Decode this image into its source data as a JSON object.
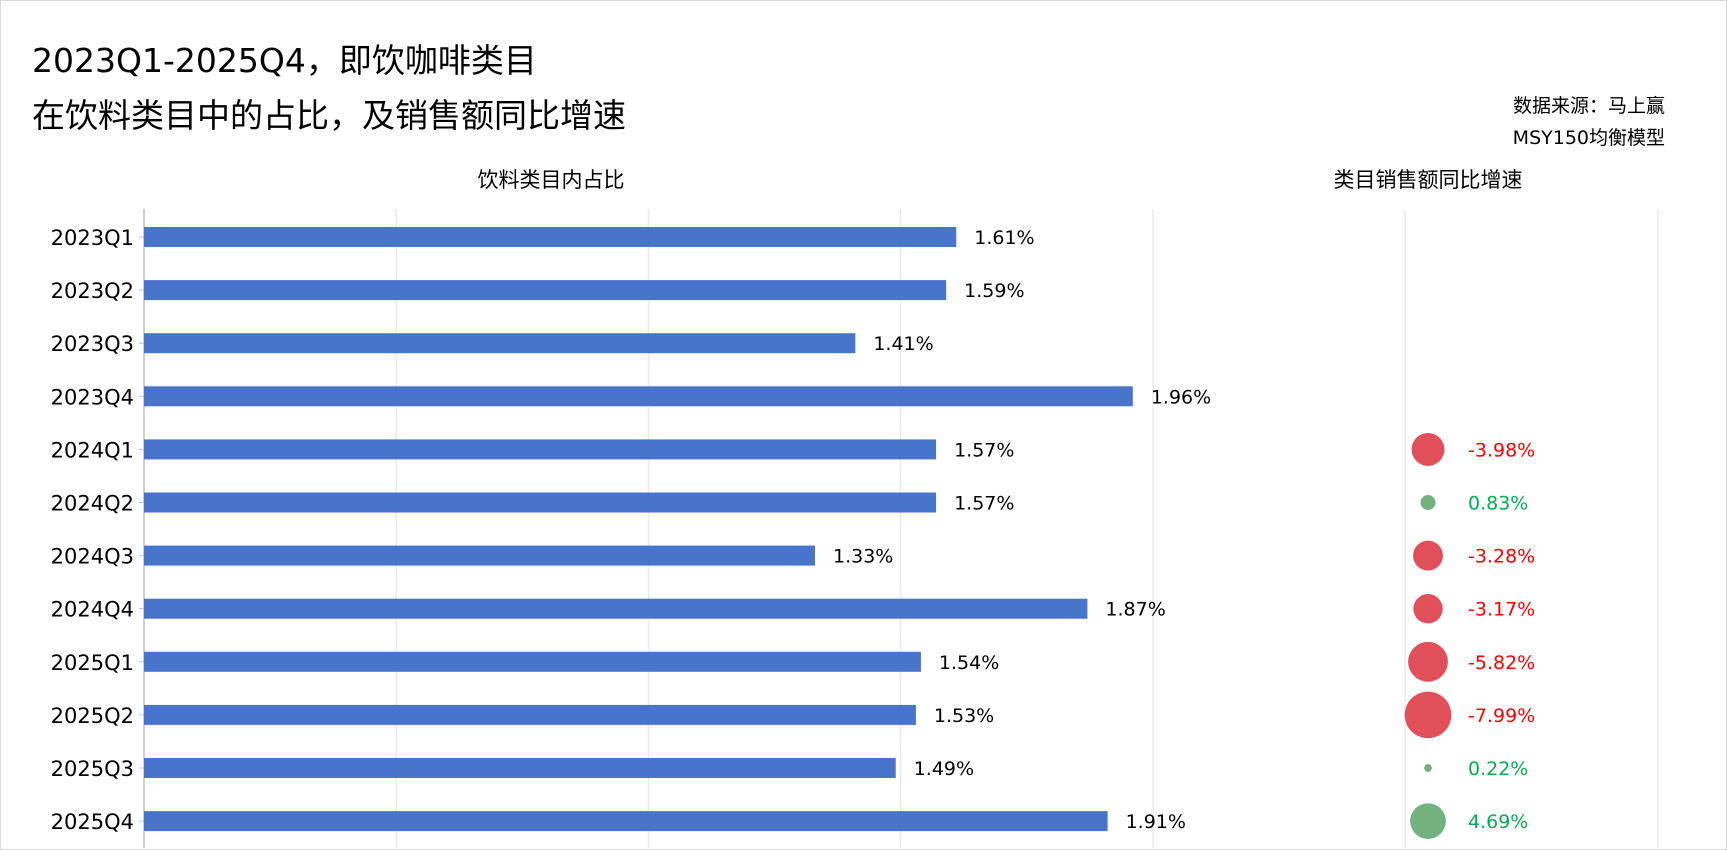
{
  "title_line1": "2023Q1-2025Q4，即饮咖啡类目",
  "title_line2": "在饮料类目中的占比，及销售额同比增速",
  "source_line1": "数据来源：马上赢",
  "source_line2": "MSY150均衡模型",
  "colors": {
    "bar": "#4874CB",
    "negative_bubble": "#E04F5A",
    "positive_bubble": "#72B27E",
    "negative_text": "#FF0000",
    "positive_text": "#00B050",
    "grid": "#EBEBEB"
  },
  "chart_data": [
    {
      "type": "bar",
      "orientation": "horizontal",
      "title": "饮料类目内占比",
      "categories": [
        "2023Q1",
        "2023Q2",
        "2023Q3",
        "2023Q4",
        "2024Q1",
        "2024Q2",
        "2024Q3",
        "2024Q4",
        "2025Q1",
        "2025Q2",
        "2025Q3",
        "2025Q4"
      ],
      "values": [
        1.61,
        1.59,
        1.41,
        1.96,
        1.57,
        1.57,
        1.33,
        1.87,
        1.54,
        1.53,
        1.49,
        1.91
      ],
      "labels": [
        "1.61%",
        "1.59%",
        "1.41%",
        "1.96%",
        "1.57%",
        "1.57%",
        "1.33%",
        "1.87%",
        "1.54%",
        "1.53%",
        "1.49%",
        "1.91%"
      ],
      "xlim": [
        0,
        2.0
      ],
      "grid_step": 0.5,
      "grid": true
    },
    {
      "type": "scatter",
      "subtype": "bubble",
      "title": "类目销售额同比增速",
      "categories": [
        "2024Q1",
        "2024Q2",
        "2024Q3",
        "2024Q4",
        "2025Q1",
        "2025Q2",
        "2025Q3",
        "2025Q4"
      ],
      "values": [
        -3.98,
        0.83,
        -3.28,
        -3.17,
        -5.82,
        -7.99,
        0.22,
        4.69
      ],
      "labels": [
        "-3.98%",
        "0.83%",
        "-3.28%",
        "-3.17%",
        "-5.82%",
        "-7.99%",
        "0.22%",
        "4.69%"
      ],
      "grid": true
    }
  ]
}
